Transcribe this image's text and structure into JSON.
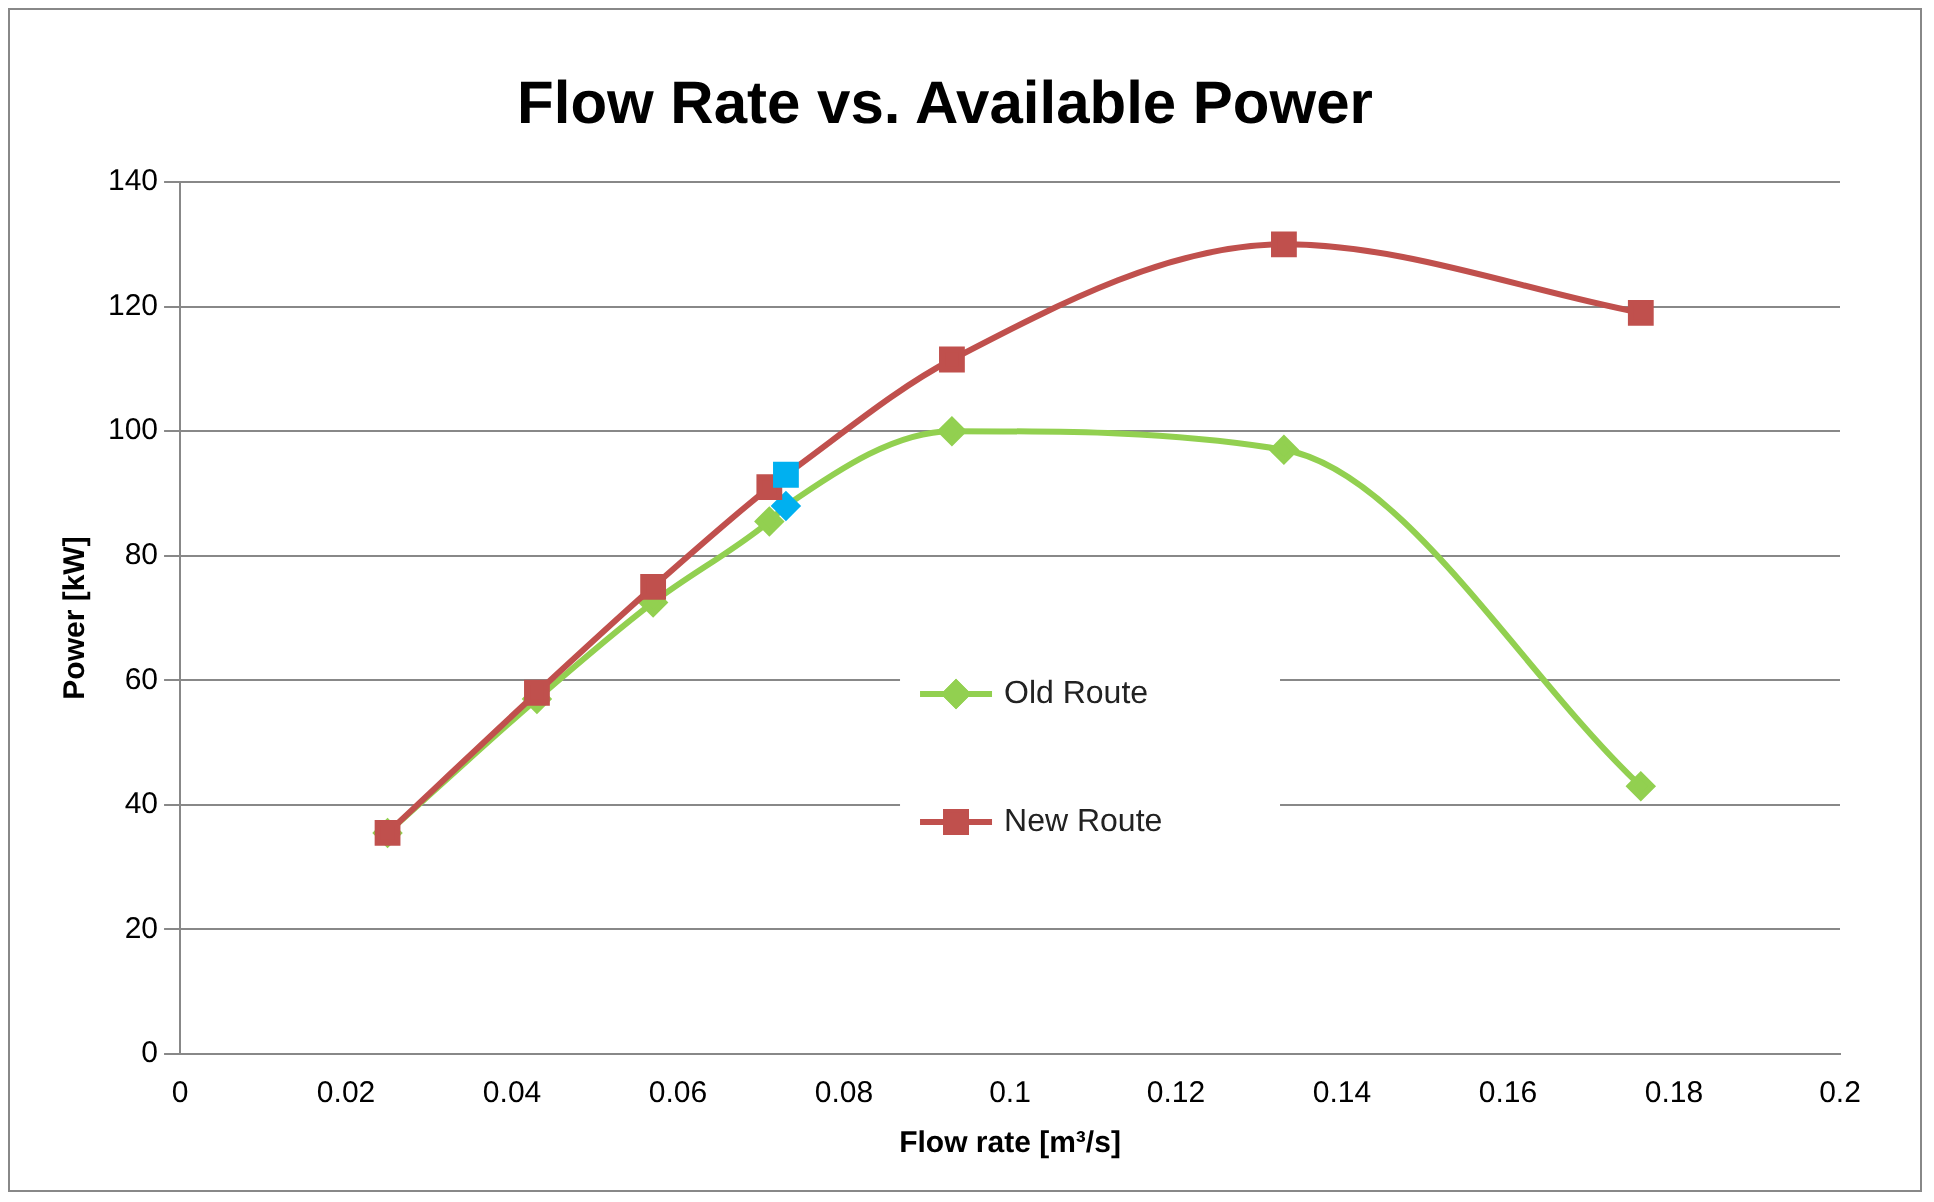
{
  "chart_data": {
    "type": "line",
    "title": "Flow Rate vs. Available Power",
    "xlabel": "Flow rate [m³/s]",
    "ylabel": "Power [kW]",
    "x": [
      0.025,
      0.043,
      0.057,
      0.071,
      0.073,
      0.093,
      0.133,
      0.176
    ],
    "series": [
      {
        "name": "Old Route",
        "color": "#92d050",
        "marker": "diamond",
        "values": [
          35.5,
          57,
          72.5,
          85.5,
          88,
          100,
          97,
          43
        ],
        "colors": [
          "#92d050",
          "#92d050",
          "#92d050",
          "#92d050",
          "#00b0f0",
          "#92d050",
          "#92d050",
          "#92d050"
        ]
      },
      {
        "name": "New Route",
        "color": "#c0504d",
        "marker": "square",
        "values": [
          35.5,
          58,
          75,
          91,
          93,
          111.5,
          130,
          119
        ],
        "colors": [
          "#c0504d",
          "#c0504d",
          "#c0504d",
          "#c0504d",
          "#00b0f0",
          "#c0504d",
          "#c0504d",
          "#c0504d"
        ]
      }
    ],
    "xlim": [
      0,
      0.2
    ],
    "xticks": [
      0,
      0.02,
      0.04,
      0.06,
      0.08,
      0.1,
      0.12,
      0.14,
      0.16,
      0.18,
      0.2
    ],
    "ylim": [
      0,
      140
    ],
    "yticks": [
      0,
      20,
      40,
      60,
      80,
      100,
      120,
      140
    ],
    "grid": "y",
    "legend": "center"
  }
}
